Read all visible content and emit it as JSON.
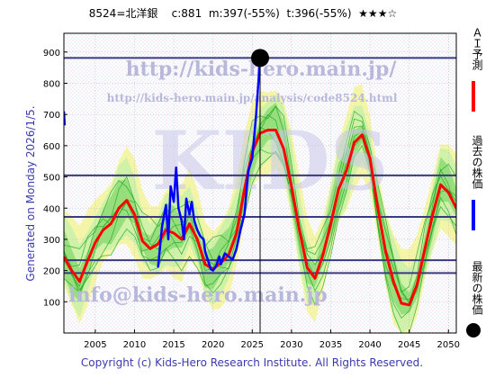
{
  "header": {
    "code_name": "8524=北洋銀",
    "current": "c:881",
    "m": "m:397(-55%)",
    "t": "t:396(-55%)",
    "rating": "★★★☆"
  },
  "generated": "Generated on Monday 2026/1/5.",
  "footer": "Copyright (c) Kids-Hero Research Institute. All Rights Reserved.",
  "watermarks": {
    "url": "http://kids-hero.main.jp/",
    "analysis_url": "http://kids-hero.main.jp/analysis/code8524.html",
    "email": "info@kids-hero.main.jp",
    "big": "KIDS"
  },
  "legend": [
    {
      "label": "ＡＩ予測",
      "color": "#ff0000"
    },
    {
      "label": "過去の株価",
      "color": "#0000ff"
    },
    {
      "label": "最新の株価",
      "color": "#000000"
    }
  ],
  "colors": {
    "ai": "#ff0000",
    "past": "#0000ff",
    "latest": "#000000",
    "envelope_light": "#c8f0a8",
    "envelope_mid": "#7fd66a",
    "envelope_line": "#22aa22",
    "yellow_band": "#f4f4a0",
    "hline": "#3a3a80"
  },
  "chart_data": {
    "type": "line",
    "xlim": [
      2001,
      2051
    ],
    "ylim": [
      0,
      960
    ],
    "x_ticks": [
      2005,
      2010,
      2015,
      2020,
      2025,
      2030,
      2035,
      2040,
      2045,
      2050
    ],
    "y_ticks": [
      100,
      200,
      300,
      400,
      500,
      600,
      700,
      800,
      900
    ],
    "grid": true,
    "latest": {
      "x": 2026.0,
      "y": 881
    },
    "vertical_marker_x": 2026.0,
    "horizontal_lines": [
      881,
      505,
      372,
      233,
      192
    ],
    "series": [
      {
        "name": "ＡＩ予測",
        "color": "#ff0000",
        "points": [
          [
            2001,
            245
          ],
          [
            2002,
            200
          ],
          [
            2003,
            165
          ],
          [
            2004,
            230
          ],
          [
            2005,
            290
          ],
          [
            2006,
            330
          ],
          [
            2007,
            350
          ],
          [
            2008,
            400
          ],
          [
            2009,
            425
          ],
          [
            2010,
            380
          ],
          [
            2011,
            295
          ],
          [
            2012,
            270
          ],
          [
            2013,
            285
          ],
          [
            2014,
            330
          ],
          [
            2015,
            320
          ],
          [
            2016,
            300
          ],
          [
            2017,
            350
          ],
          [
            2018,
            300
          ],
          [
            2019,
            220
          ],
          [
            2020,
            205
          ],
          [
            2021,
            225
          ],
          [
            2022,
            250
          ],
          [
            2023,
            320
          ],
          [
            2024,
            460
          ],
          [
            2025,
            580
          ],
          [
            2026,
            640
          ],
          [
            2027,
            650
          ],
          [
            2028,
            650
          ],
          [
            2029,
            590
          ],
          [
            2030,
            470
          ],
          [
            2031,
            330
          ],
          [
            2032,
            210
          ],
          [
            2033,
            175
          ],
          [
            2034,
            250
          ],
          [
            2035,
            350
          ],
          [
            2036,
            460
          ],
          [
            2037,
            520
          ],
          [
            2038,
            610
          ],
          [
            2039,
            635
          ],
          [
            2040,
            560
          ],
          [
            2041,
            400
          ],
          [
            2042,
            260
          ],
          [
            2043,
            165
          ],
          [
            2044,
            95
          ],
          [
            2045,
            90
          ],
          [
            2046,
            155
          ],
          [
            2047,
            270
          ],
          [
            2048,
            380
          ],
          [
            2049,
            475
          ],
          [
            2050,
            450
          ],
          [
            2051,
            400
          ]
        ]
      },
      {
        "name": "過去の株価",
        "color": "#0000ff",
        "points": [
          [
            2001,
            710
          ],
          [
            2001.1,
            665
          ],
          [
            2013,
            210
          ],
          [
            2013.5,
            340
          ],
          [
            2014,
            410
          ],
          [
            2014.3,
            300
          ],
          [
            2014.6,
            470
          ],
          [
            2015,
            420
          ],
          [
            2015.3,
            530
          ],
          [
            2015.6,
            400
          ],
          [
            2016,
            360
          ],
          [
            2016.3,
            300
          ],
          [
            2016.6,
            430
          ],
          [
            2017,
            380
          ],
          [
            2017.3,
            420
          ],
          [
            2017.6,
            360
          ],
          [
            2018,
            330
          ],
          [
            2018.4,
            310
          ],
          [
            2018.8,
            300
          ],
          [
            2019,
            260
          ],
          [
            2019.4,
            230
          ],
          [
            2019.7,
            205
          ],
          [
            2020,
            200
          ],
          [
            2020.4,
            215
          ],
          [
            2020.8,
            245
          ],
          [
            2021,
            220
          ],
          [
            2021.5,
            255
          ],
          [
            2022,
            245
          ],
          [
            2022.5,
            235
          ],
          [
            2023,
            270
          ],
          [
            2023.5,
            330
          ],
          [
            2024,
            380
          ],
          [
            2024.5,
            520
          ],
          [
            2025,
            560
          ],
          [
            2025.5,
            700
          ],
          [
            2026,
            881
          ]
        ]
      }
    ]
  }
}
